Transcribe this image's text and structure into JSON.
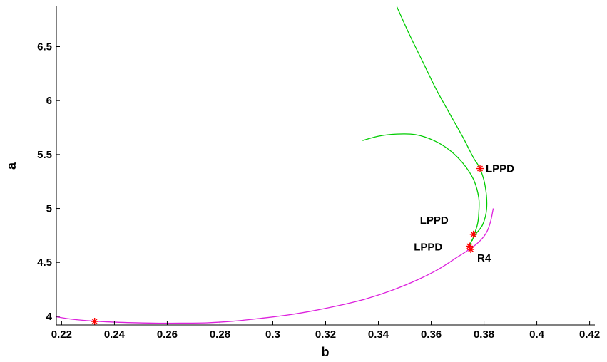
{
  "chart_data": {
    "type": "line",
    "title": "",
    "xlabel": "b",
    "ylabel": "a",
    "xlim": [
      0.218,
      0.422
    ],
    "ylim": [
      3.92,
      6.88
    ],
    "xticks": [
      "0.22",
      "0.24",
      "0.26",
      "0.28",
      "0.3",
      "0.32",
      "0.34",
      "0.36",
      "0.38",
      "0.4",
      "0.42"
    ],
    "yticks": [
      "4",
      "4.5",
      "5",
      "5.5",
      "6",
      "6.5"
    ],
    "grid": false,
    "series": [
      {
        "color": "#00cc00",
        "points": [
          [
            0.347,
            6.87
          ],
          [
            0.352,
            6.6
          ],
          [
            0.357,
            6.35
          ],
          [
            0.362,
            6.1
          ],
          [
            0.367,
            5.88
          ],
          [
            0.372,
            5.66
          ],
          [
            0.376,
            5.47
          ],
          [
            0.3785,
            5.37
          ],
          [
            0.3805,
            5.2
          ],
          [
            0.381,
            5.0
          ],
          [
            0.3795,
            4.85
          ],
          [
            0.3765,
            4.75
          ],
          [
            0.3745,
            4.66
          ]
        ]
      },
      {
        "color": "#00cc00",
        "points": [
          [
            0.334,
            5.63
          ],
          [
            0.34,
            5.67
          ],
          [
            0.347,
            5.69
          ],
          [
            0.354,
            5.685
          ],
          [
            0.361,
            5.63
          ],
          [
            0.367,
            5.54
          ],
          [
            0.372,
            5.42
          ],
          [
            0.376,
            5.27
          ],
          [
            0.378,
            5.1
          ],
          [
            0.378,
            4.95
          ],
          [
            0.3775,
            4.85
          ],
          [
            0.3755,
            4.7
          ]
        ]
      },
      {
        "color": "#dd22dd",
        "points": [
          [
            0.218,
            3.995
          ],
          [
            0.225,
            3.97
          ],
          [
            0.235,
            3.952
          ],
          [
            0.245,
            3.942
          ],
          [
            0.255,
            3.937
          ],
          [
            0.265,
            3.937
          ],
          [
            0.275,
            3.94
          ],
          [
            0.285,
            3.955
          ],
          [
            0.295,
            3.98
          ],
          [
            0.305,
            4.01
          ],
          [
            0.315,
            4.05
          ],
          [
            0.325,
            4.1
          ],
          [
            0.335,
            4.16
          ],
          [
            0.345,
            4.24
          ],
          [
            0.355,
            4.34
          ],
          [
            0.363,
            4.44
          ],
          [
            0.37,
            4.55
          ],
          [
            0.375,
            4.63
          ],
          [
            0.3785,
            4.7
          ],
          [
            0.381,
            4.78
          ],
          [
            0.3825,
            4.88
          ],
          [
            0.3835,
            5.0
          ]
        ]
      }
    ],
    "special_points": [
      {
        "label": "LPPD",
        "x": 0.3785,
        "y": 5.37
      },
      {
        "label": "LPPD",
        "x": 0.376,
        "y": 4.76
      },
      {
        "label": "LPPD",
        "x": 0.3745,
        "y": 4.65
      },
      {
        "label": "R4",
        "x": 0.375,
        "y": 4.62
      },
      {
        "label": "",
        "x": 0.2325,
        "y": 3.953
      }
    ],
    "point_color": "#ff0000"
  }
}
